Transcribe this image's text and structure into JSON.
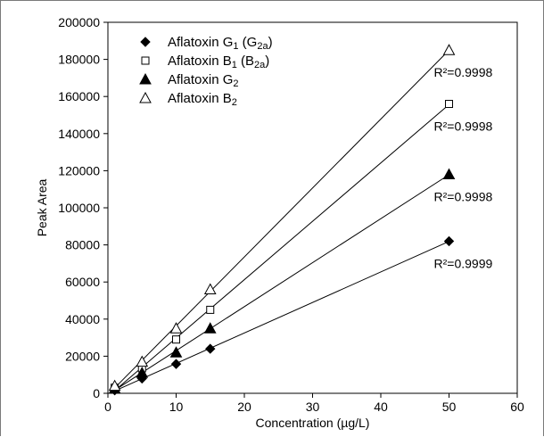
{
  "chart_data": {
    "type": "scatter",
    "title": "",
    "xlabel": "Concentration (µg/L)",
    "ylabel": "Peak Area",
    "xlim": [
      0,
      60
    ],
    "ylim": [
      0,
      200000
    ],
    "xticks": [
      "0",
      "10",
      "20",
      "30",
      "40",
      "50",
      "60"
    ],
    "yticks": [
      "0",
      "20000",
      "40000",
      "60000",
      "80000",
      "100000",
      "120000",
      "140000",
      "160000",
      "180000",
      "200000"
    ],
    "grid": false,
    "legend_position": "top-left",
    "series": [
      {
        "name": "Aflatoxin G1 (G2a)",
        "name_parts": {
          "base": "Aflatoxin G",
          "sub1": "1",
          "mid": " (G",
          "sub2": "2a",
          "end": ")"
        },
        "marker": "diamond",
        "x": [
          1,
          5,
          10,
          15,
          50
        ],
        "y": [
          1600,
          8000,
          15800,
          24000,
          82000
        ],
        "fit_line": true,
        "r2": "R²=0.9999"
      },
      {
        "name": "Aflatoxin B1 (B2a)",
        "name_parts": {
          "base": "Aflatoxin B",
          "sub1": "1",
          "mid": " (B",
          "sub2": "2a",
          "end": ")"
        },
        "marker": "open-square",
        "x": [
          1,
          5,
          10,
          15,
          50
        ],
        "y": [
          3000,
          13500,
          29000,
          45000,
          156000
        ],
        "fit_line": true,
        "r2": "R²=0.9998"
      },
      {
        "name": "Aflatoxin G2",
        "name_parts": {
          "base": "Aflatoxin G",
          "sub1": "2",
          "mid": "",
          "sub2": "",
          "end": ""
        },
        "marker": "filled-triangle",
        "x": [
          1,
          5,
          10,
          15,
          50
        ],
        "y": [
          2500,
          11000,
          22000,
          35000,
          118000
        ],
        "fit_line": true,
        "r2": "R²=0.9998"
      },
      {
        "name": "Aflatoxin B2",
        "name_parts": {
          "base": "Aflatoxin B",
          "sub1": "2",
          "mid": "",
          "sub2": "",
          "end": ""
        },
        "marker": "open-triangle",
        "x": [
          1,
          5,
          10,
          15,
          50
        ],
        "y": [
          4000,
          17000,
          35000,
          56000,
          185000
        ],
        "fit_line": true,
        "r2": "R²=0.9998"
      }
    ]
  }
}
